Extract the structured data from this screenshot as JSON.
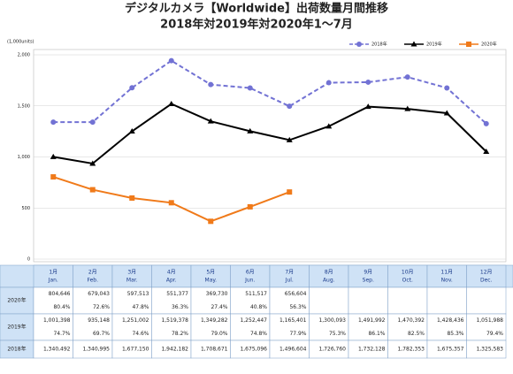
{
  "chart_data": {
    "type": "line",
    "title": "デジタルカメラ【Worldwide】出荷数量月間推移",
    "subtitle": "2018年対2019年対2020年1～7月",
    "y_unit_label": "(1,000units)",
    "categories": [
      "1月",
      "2月",
      "3月",
      "4月",
      "5月",
      "6月",
      "7月",
      "8月",
      "9月",
      "10月",
      "11月",
      "12月"
    ],
    "categories_en": [
      "Jan.",
      "Feb.",
      "Mar.",
      "Apr.",
      "May.",
      "Jun.",
      "Jul.",
      "Aug.",
      "Sep.",
      "Oct.",
      "Nov.",
      "Dec."
    ],
    "ylim": [
      0,
      2000
    ],
    "yticks": [
      0,
      500,
      {
        "value": 1000,
        "label": "1,000"
      },
      {
        "value": 1500,
        "label": "1,500"
      },
      {
        "value": 2000,
        "label": "2,000"
      }
    ],
    "grid": true,
    "legend": "top-right",
    "series": [
      {
        "name": "2018年",
        "color": "#7272d4",
        "dash": true,
        "marker": "circle",
        "values": [
          1340.492,
          1340.995,
          1677.15,
          1942.182,
          1708.671,
          1675.096,
          1496.604,
          1726.76,
          1732.128,
          1782.353,
          1675.357,
          1325.583
        ]
      },
      {
        "name": "2019年",
        "color": "#000000",
        "dash": false,
        "marker": "triangle",
        "values": [
          1001.398,
          935.148,
          1251.002,
          1519.378,
          1349.282,
          1252.447,
          1165.401,
          1300.093,
          1491.992,
          1470.392,
          1428.436,
          1051.988
        ]
      },
      {
        "name": "2020年",
        "color": "#f07a1a",
        "dash": false,
        "marker": "square",
        "values": [
          804.646,
          679.043,
          597.513,
          551.377,
          369.73,
          511.517,
          656.604,
          null,
          null,
          null,
          null,
          null
        ]
      }
    ]
  },
  "table": {
    "rows": [
      {
        "label": "2020年",
        "values": [
          "804,646",
          "679,043",
          "597,513",
          "551,377",
          "369,730",
          "511,517",
          "656,604"
        ],
        "pct": [
          "80.4%",
          "72.6%",
          "47.8%",
          "36.3%",
          "27.4%",
          "40.8%",
          "56.3%"
        ]
      },
      {
        "label": "2019年",
        "values": [
          "1,001,398",
          "935,148",
          "1,251,002",
          "1,519,378",
          "1,349,282",
          "1,252,447",
          "1,165,401",
          "1,300,093",
          "1,491,992",
          "1,470,392",
          "1,428,436",
          "1,051,988"
        ],
        "pct": [
          "74.7%",
          "69.7%",
          "74.6%",
          "78.2%",
          "79.0%",
          "74.8%",
          "77.9%",
          "75.3%",
          "86.1%",
          "82.5%",
          "85.3%",
          "79.4%"
        ]
      },
      {
        "label": "2018年",
        "values": [
          "1,340,492",
          "1,340,995",
          "1,677,150",
          "1,942,182",
          "1,708,671",
          "1,675,096",
          "1,496,604",
          "1,726,760",
          "1,732,128",
          "1,782,353",
          "1,675,357",
          "1,325,583"
        ]
      }
    ]
  }
}
